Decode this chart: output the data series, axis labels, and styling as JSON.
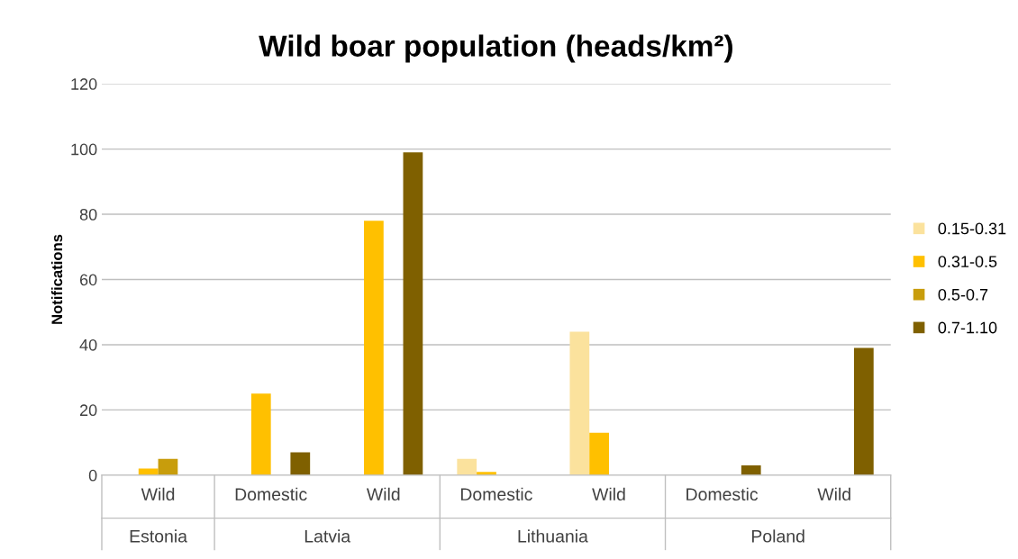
{
  "chart_data": {
    "type": "bar",
    "title": "Wild boar population (heads/km²)",
    "ylabel": "Notifications",
    "categories": [
      "Wild",
      "Domestic",
      "Wild",
      "Domestic",
      "Wild",
      "Domestic",
      "Wild"
    ],
    "annotations": [
      "Estonia",
      "Latvia",
      "Lithuania",
      "Poland"
    ],
    "series": [
      {
        "name": "0.15-0.31",
        "color": "#fbe29d",
        "values": [
          null,
          null,
          null,
          5,
          44,
          null,
          null
        ]
      },
      {
        "name": "0.31-0.5",
        "color": "#ffc000",
        "values": [
          2,
          25,
          78,
          1,
          13,
          null,
          null
        ]
      },
      {
        "name": "0.5-0.7",
        "color": "#c89d0c",
        "values": [
          5,
          null,
          null,
          null,
          null,
          null,
          null
        ]
      },
      {
        "name": "0.7-1.10",
        "color": "#7f6000",
        "values": [
          null,
          7,
          99,
          null,
          null,
          3,
          39
        ]
      }
    ],
    "ylim": [
      0,
      120
    ],
    "yticks": [
      0,
      20,
      40,
      60,
      80,
      100,
      120
    ],
    "grid": "y",
    "legend": "right"
  }
}
